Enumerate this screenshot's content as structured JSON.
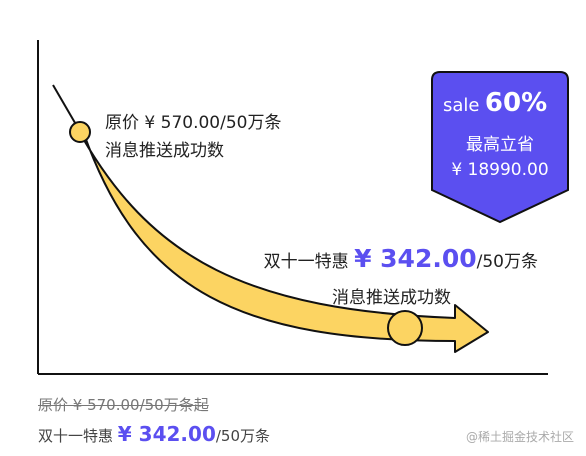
{
  "callouts": [
    {
      "prefix": "原价",
      "price": "¥ 570.00",
      "unit": "/50万条",
      "caption": "消息推送成功数"
    },
    {
      "prefix": "双十一特惠",
      "price": "¥ 342.00",
      "unit": "/50万条",
      "caption": "消息推送成功数"
    }
  ],
  "badge": {
    "label": "sale",
    "percent": "60%",
    "line": "最高立省",
    "amount": "¥ 18990.00"
  },
  "footer": {
    "original": "原价 ¥ 570.00/50万条起",
    "offer_prefix": "双十一特惠",
    "offer_price": "¥ 342.00",
    "offer_unit": "/50万条"
  },
  "watermark": "@稀土掘金技术社区"
}
